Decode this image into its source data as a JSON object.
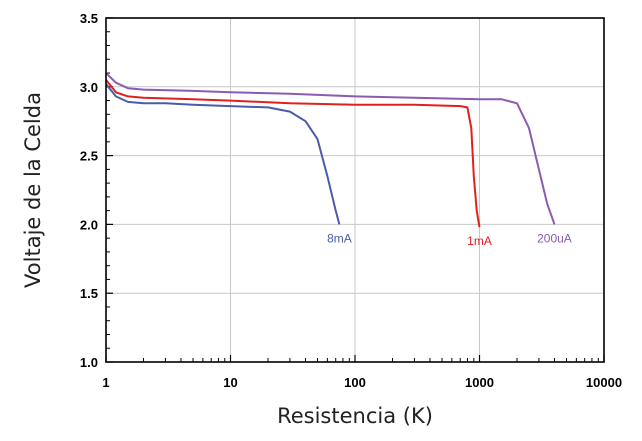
{
  "chart_data": {
    "type": "line",
    "xlabel": "Resistencia (K)",
    "ylabel": "Voltaje de la Celda",
    "xscale": "log",
    "xlim": [
      1,
      10000
    ],
    "ylim": [
      1.0,
      3.5
    ],
    "x_ticks": [
      1,
      10,
      100,
      1000,
      10000
    ],
    "x_tick_labels": [
      "1",
      "10",
      "100",
      "1000",
      "10000"
    ],
    "y_ticks": [
      1.0,
      1.5,
      2.0,
      2.5,
      3.0,
      3.5
    ],
    "y_tick_labels": [
      "1.0",
      "1.5",
      "2.0",
      "2.5",
      "3.0",
      "3.5"
    ],
    "grid": true,
    "series": [
      {
        "name": "8mA",
        "color": "#4a5bab",
        "x": [
          1,
          1.2,
          1.5,
          2,
          3,
          5,
          10,
          20,
          30,
          40,
          50,
          60,
          70,
          75
        ],
        "y": [
          3.02,
          2.93,
          2.89,
          2.88,
          2.88,
          2.87,
          2.86,
          2.85,
          2.82,
          2.75,
          2.62,
          2.35,
          2.1,
          2.0
        ]
      },
      {
        "name": "1mA",
        "color": "#e02020",
        "x": [
          1,
          1.2,
          1.5,
          2,
          5,
          10,
          30,
          100,
          300,
          700,
          800,
          860,
          900,
          950,
          1000
        ],
        "y": [
          3.05,
          2.96,
          2.93,
          2.92,
          2.91,
          2.9,
          2.88,
          2.87,
          2.87,
          2.86,
          2.85,
          2.7,
          2.35,
          2.1,
          1.98
        ]
      },
      {
        "name": "200uA",
        "color": "#8a5bb0",
        "x": [
          1,
          1.2,
          1.5,
          2,
          5,
          10,
          30,
          100,
          300,
          1000,
          1500,
          2000,
          2500,
          3000,
          3500,
          4000
        ],
        "y": [
          3.1,
          3.03,
          2.99,
          2.98,
          2.97,
          2.96,
          2.95,
          2.93,
          2.92,
          2.91,
          2.91,
          2.88,
          2.7,
          2.4,
          2.15,
          2.0
        ]
      }
    ]
  }
}
